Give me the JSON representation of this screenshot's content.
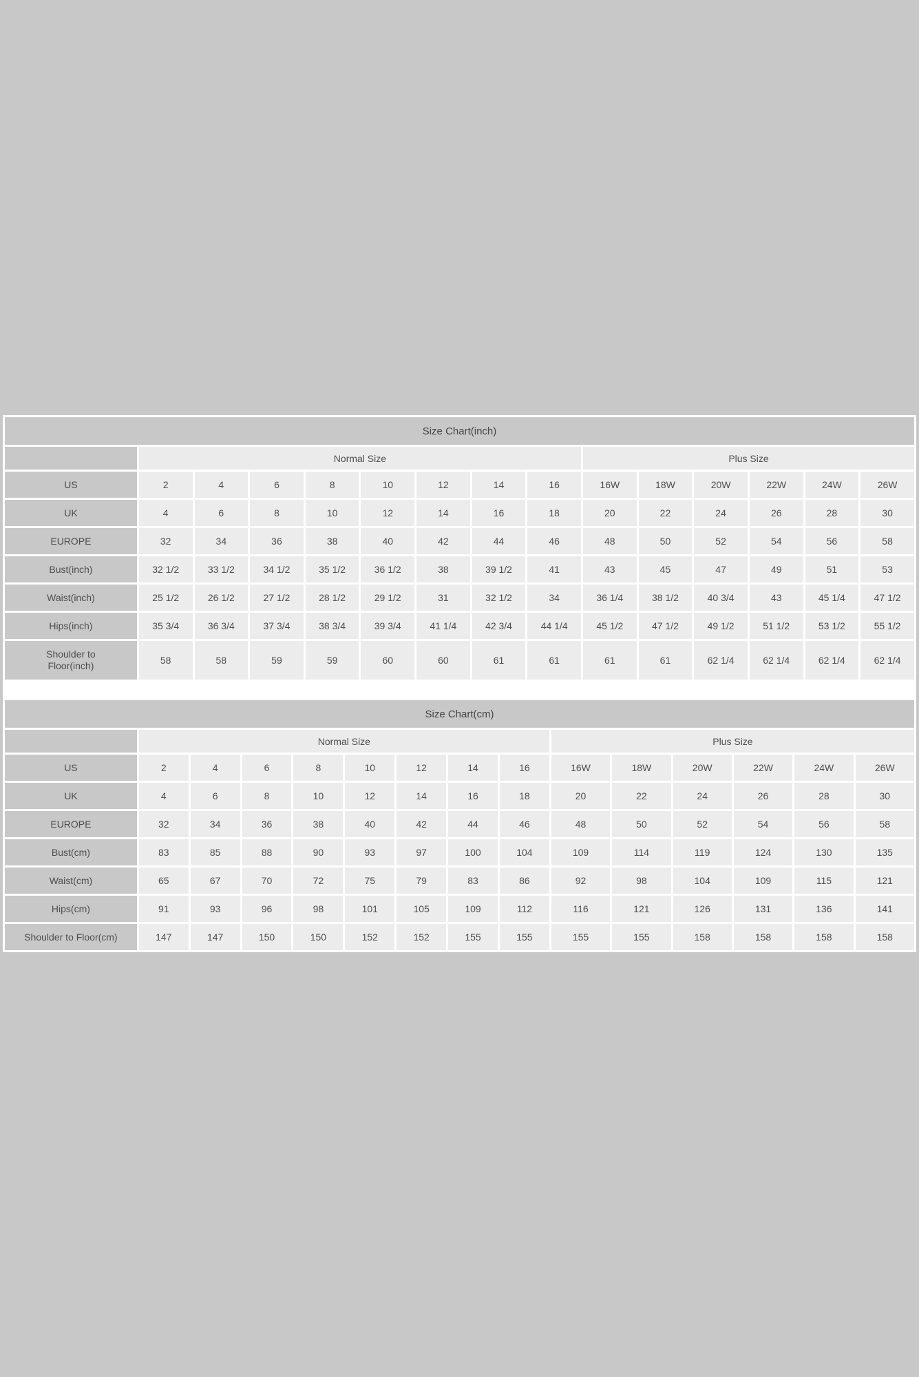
{
  "page": {
    "background_color": "#c8c8c8",
    "panel_background": "#ffffff",
    "title_bar_color": "#c8c8c8",
    "header_cell_color": "#c8c8c8",
    "data_cell_color": "#ececec",
    "text_color": "#4d4d4d"
  },
  "tables": [
    {
      "title": "Size Chart(inch)",
      "group_headers": [
        {
          "label": "",
          "span": 1
        },
        {
          "label": "Normal Size",
          "span": 8
        },
        {
          "label": "Plus Size",
          "span": 6
        }
      ],
      "rows": [
        {
          "label": "US",
          "values": [
            "2",
            "4",
            "6",
            "8",
            "10",
            "12",
            "14",
            "16",
            "16W",
            "18W",
            "20W",
            "22W",
            "24W",
            "26W"
          ]
        },
        {
          "label": "UK",
          "values": [
            "4",
            "6",
            "8",
            "10",
            "12",
            "14",
            "16",
            "18",
            "20",
            "22",
            "24",
            "26",
            "28",
            "30"
          ]
        },
        {
          "label": "EUROPE",
          "values": [
            "32",
            "34",
            "36",
            "38",
            "40",
            "42",
            "44",
            "46",
            "48",
            "50",
            "52",
            "54",
            "56",
            "58"
          ]
        },
        {
          "label": "Bust(inch)",
          "values": [
            "32 1/2",
            "33 1/2",
            "34 1/2",
            "35 1/2",
            "36 1/2",
            "38",
            "39 1/2",
            "41",
            "43",
            "45",
            "47",
            "49",
            "51",
            "53"
          ]
        },
        {
          "label": "Waist(inch)",
          "values": [
            "25 1/2",
            "26 1/2",
            "27 1/2",
            "28 1/2",
            "29 1/2",
            "31",
            "32 1/2",
            "34",
            "36 1/4",
            "38 1/2",
            "40 3/4",
            "43",
            "45 1/4",
            "47 1/2"
          ]
        },
        {
          "label": "Hips(inch)",
          "values": [
            "35 3/4",
            "36 3/4",
            "37 3/4",
            "38 3/4",
            "39 3/4",
            "41 1/4",
            "42 3/4",
            "44 1/4",
            "45 1/2",
            "47 1/2",
            "49 1/2",
            "51 1/2",
            "53 1/2",
            "55 1/2"
          ]
        },
        {
          "label": "Shoulder to Floor(inch)",
          "values": [
            "58",
            "58",
            "59",
            "59",
            "60",
            "60",
            "61",
            "61",
            "61",
            "61",
            "62 1/4",
            "62 1/4",
            "62 1/4",
            "62 1/4"
          ]
        }
      ]
    },
    {
      "title": "Size Chart(cm)",
      "group_headers": [
        {
          "label": "",
          "span": 1
        },
        {
          "label": "Normal Size",
          "span": 8
        },
        {
          "label": "Plus Size",
          "span": 6
        }
      ],
      "rows": [
        {
          "label": "US",
          "values": [
            "2",
            "4",
            "6",
            "8",
            "10",
            "12",
            "14",
            "16",
            "16W",
            "18W",
            "20W",
            "22W",
            "24W",
            "26W"
          ]
        },
        {
          "label": "UK",
          "values": [
            "4",
            "6",
            "8",
            "10",
            "12",
            "14",
            "16",
            "18",
            "20",
            "22",
            "24",
            "26",
            "28",
            "30"
          ]
        },
        {
          "label": "EUROPE",
          "values": [
            "32",
            "34",
            "36",
            "38",
            "40",
            "42",
            "44",
            "46",
            "48",
            "50",
            "52",
            "54",
            "56",
            "58"
          ]
        },
        {
          "label": "Bust(cm)",
          "values": [
            "83",
            "85",
            "88",
            "90",
            "93",
            "97",
            "100",
            "104",
            "109",
            "114",
            "119",
            "124",
            "130",
            "135"
          ]
        },
        {
          "label": "Waist(cm)",
          "values": [
            "65",
            "67",
            "70",
            "72",
            "75",
            "79",
            "83",
            "86",
            "92",
            "98",
            "104",
            "109",
            "115",
            "121"
          ]
        },
        {
          "label": "Hips(cm)",
          "values": [
            "91",
            "93",
            "96",
            "98",
            "101",
            "105",
            "109",
            "112",
            "116",
            "121",
            "126",
            "131",
            "136",
            "141"
          ]
        },
        {
          "label": "Shoulder to Floor(cm)",
          "values": [
            "147",
            "147",
            "150",
            "150",
            "152",
            "152",
            "155",
            "155",
            "155",
            "155",
            "158",
            "158",
            "158",
            "158"
          ]
        }
      ]
    }
  ]
}
